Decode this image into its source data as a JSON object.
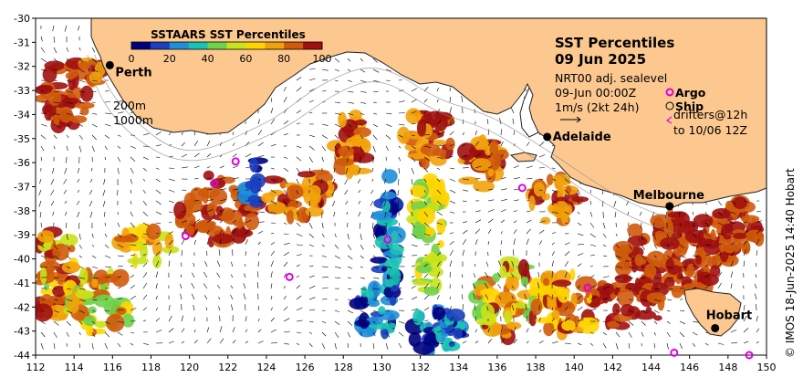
{
  "title_line1": "SST Percentiles",
  "title_line2": "09 Jun 2025",
  "product": "NRT00 adj. sealevel",
  "valid_time": "09-Jun 00:00Z",
  "vector_scale": "1m/s (2kt 24h)",
  "legend": {
    "argo": "Argo",
    "ship": "Ship",
    "drifters_line1": "drifters@12h",
    "drifters_line2": "to 10/06 12Z"
  },
  "depth_contours": {
    "c200": "200m",
    "c1000": "1000m"
  },
  "colorbar": {
    "title": "SSTAARS SST Percentiles",
    "ticks": [
      "0",
      "20",
      "40",
      "60",
      "80",
      "100"
    ],
    "colors": [
      "#00007f",
      "#1b3fbf",
      "#1f8fd8",
      "#19c2b2",
      "#6fd24a",
      "#c9e21a",
      "#ffd500",
      "#f2a20a",
      "#cf5a0b",
      "#a01010"
    ]
  },
  "cities": [
    {
      "name": "Perth",
      "lon": 115.86,
      "lat": -31.95
    },
    {
      "name": "Adelaide",
      "lon": 138.6,
      "lat": -34.93
    },
    {
      "name": "Melbourne",
      "lon": 144.96,
      "lat": -37.81
    },
    {
      "name": "Hobart",
      "lon": 147.33,
      "lat": -42.88
    }
  ],
  "argo_floats": [
    {
      "lon": 122.4,
      "lat": -35.95
    },
    {
      "lon": 121.3,
      "lat": -36.85
    },
    {
      "lon": 119.8,
      "lat": -39.05
    },
    {
      "lon": 125.2,
      "lat": -40.75
    },
    {
      "lon": 130.3,
      "lat": -39.2
    },
    {
      "lon": 137.3,
      "lat": -37.05
    },
    {
      "lon": 140.7,
      "lat": -41.2
    },
    {
      "lon": 145.2,
      "lat": -43.9
    },
    {
      "lon": 149.1,
      "lat": -44.0
    }
  ],
  "axes": {
    "lon_ticks": [
      "112",
      "114",
      "116",
      "118",
      "120",
      "122",
      "124",
      "126",
      "128",
      "130",
      "132",
      "134",
      "136",
      "138",
      "140",
      "142",
      "144",
      "146",
      "148",
      "150"
    ],
    "lat_ticks": [
      "-30",
      "-31",
      "-32",
      "-33",
      "-34",
      "-35",
      "-36",
      "-37",
      "-38",
      "-39",
      "-40",
      "-41",
      "-42",
      "-43",
      "-44"
    ],
    "lon_range": [
      112,
      150
    ],
    "lat_range": [
      -44,
      -30
    ]
  },
  "colors": {
    "land": "#fcc890",
    "ocean": "#ffffff"
  },
  "credit": "© IMOS 18-Jun-2025 14:40 Hobart"
}
